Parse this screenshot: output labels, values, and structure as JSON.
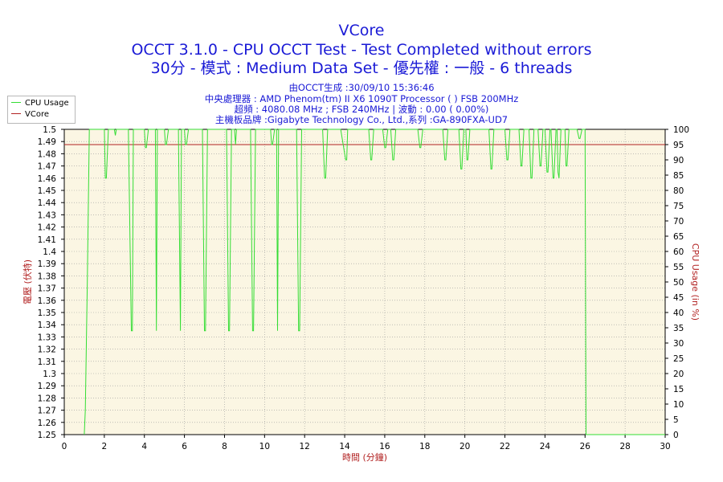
{
  "header": {
    "title": "VCore",
    "subtitle1": "OCCT 3.1.0 - CPU OCCT Test - Test Completed without errors",
    "subtitle2": "30分 - 模式 : Medium Data Set - 優先權 : 一般 - 6 threads",
    "info1": "由OCCT生成 :30/09/10 15:36:46",
    "info2": "中央處理器 : AMD Phenom(tm) II X6 1090T Processor (  ) FSB 200MHz",
    "info3": "超頻 : 4080.08 MHz ; FSB 240MHz | 波動 : 0.00 ( 0.00%)",
    "info4": "主機板品牌 :Gigabyte Technology Co., Ltd.,系列 :GA-890FXA-UD7"
  },
  "legend": [
    {
      "label": "CPU Usage",
      "color": "#33dd33"
    },
    {
      "label": "VCore",
      "color": "#b22222"
    }
  ],
  "chart_data": {
    "type": "line",
    "xlabel": "時間 (分鐘)",
    "ylabel": "電壓 (伏特)",
    "y2label": "CPU Usage (in %)",
    "xlim": [
      0,
      30
    ],
    "ylim": [
      1.25,
      1.5
    ],
    "y2lim": [
      0,
      100
    ],
    "x_ticks": [
      0,
      2,
      4,
      6,
      8,
      10,
      12,
      14,
      16,
      18,
      20,
      22,
      24,
      26,
      28,
      30
    ],
    "y_ticks": [
      "1.25",
      "1.26",
      "1.27",
      "1.28",
      "1.29",
      "1.3",
      "1.31",
      "1.32",
      "1.33",
      "1.34",
      "1.35",
      "1.36",
      "1.37",
      "1.38",
      "1.39",
      "1.4",
      "1.41",
      "1.42",
      "1.43",
      "1.44",
      "1.45",
      "1.46",
      "1.47",
      "1.48",
      "1.49",
      "1.5"
    ],
    "y2_ticks": [
      0,
      5,
      10,
      15,
      20,
      25,
      30,
      35,
      40,
      45,
      50,
      55,
      60,
      65,
      70,
      75,
      80,
      85,
      90,
      95,
      100
    ],
    "grid": true,
    "legend_position": "top-left",
    "series": [
      {
        "name": "VCore",
        "axis": "left",
        "color": "#b22222",
        "x": [
          0,
          30
        ],
        "y": [
          1.4875,
          1.4875
        ]
      },
      {
        "name": "CPU Usage",
        "axis": "right",
        "color": "#33dd33",
        "x": [
          1.0,
          1.05,
          1.15,
          1.25,
          2.0,
          2.05,
          2.1,
          2.2,
          2.3,
          2.5,
          2.55,
          2.6,
          3.2,
          3.35,
          3.4,
          3.45,
          3.6,
          4.0,
          4.05,
          4.1,
          4.2,
          4.55,
          4.6,
          4.65,
          4.8,
          5.0,
          5.05,
          5.1,
          5.2,
          5.7,
          5.8,
          5.85,
          5.95,
          6.0,
          6.05,
          6.1,
          6.2,
          6.9,
          7.0,
          7.05,
          7.15,
          8.1,
          8.2,
          8.25,
          8.35,
          8.5,
          8.55,
          8.6,
          9.3,
          9.4,
          9.45,
          9.55,
          10.3,
          10.35,
          10.4,
          10.5,
          10.6,
          10.65,
          10.7,
          11.6,
          11.7,
          11.75,
          11.85,
          12.9,
          13.0,
          13.05,
          13.15,
          13.8,
          14.05,
          14.1,
          14.15,
          14.25,
          15.2,
          15.3,
          15.35,
          15.45,
          15.9,
          16.0,
          16.05,
          16.15,
          16.3,
          16.4,
          16.45,
          16.55,
          17.65,
          17.75,
          17.8,
          17.9,
          18.9,
          19.0,
          19.05,
          19.15,
          19.7,
          19.8,
          19.85,
          19.95,
          20.05,
          20.1,
          20.15,
          20.25,
          21.2,
          21.3,
          21.35,
          21.45,
          22.0,
          22.1,
          22.15,
          22.25,
          22.7,
          22.8,
          22.85,
          22.95,
          23.2,
          23.3,
          23.35,
          23.45,
          23.65,
          23.75,
          23.8,
          23.9,
          24.0,
          24.1,
          24.15,
          24.25,
          24.3,
          24.4,
          24.45,
          24.55,
          24.6,
          24.65,
          24.7,
          24.8,
          25.0,
          25.05,
          25.1,
          25.2,
          25.6,
          25.7,
          25.75,
          25.85,
          26.0,
          26.05,
          26.1,
          26.2,
          30.0
        ],
        "y": [
          0,
          8,
          50,
          100,
          100,
          84,
          84,
          100,
          100,
          100,
          98,
          100,
          100,
          34,
          34,
          100,
          100,
          100,
          94,
          94,
          100,
          100,
          34,
          100,
          100,
          100,
          95,
          95,
          100,
          100,
          34,
          100,
          100,
          100,
          95,
          95,
          100,
          100,
          34,
          34,
          100,
          100,
          34,
          34,
          100,
          100,
          95,
          100,
          100,
          34,
          34,
          100,
          100,
          95,
          95,
          100,
          100,
          34,
          100,
          100,
          34,
          34,
          100,
          100,
          84,
          84,
          100,
          100,
          90,
          90,
          100,
          100,
          100,
          90,
          90,
          100,
          100,
          94,
          94,
          100,
          100,
          90,
          90,
          100,
          100,
          94,
          94,
          100,
          100,
          90,
          90,
          100,
          100,
          87,
          87,
          100,
          100,
          90,
          90,
          100,
          100,
          87,
          87,
          100,
          100,
          90,
          90,
          100,
          100,
          88,
          88,
          100,
          100,
          84,
          84,
          100,
          100,
          88,
          88,
          100,
          100,
          86,
          86,
          100,
          100,
          84,
          84,
          100,
          100,
          86,
          84,
          100,
          100,
          88,
          88,
          100,
          100,
          97,
          97,
          100,
          100,
          0,
          0,
          0,
          0
        ]
      }
    ]
  }
}
